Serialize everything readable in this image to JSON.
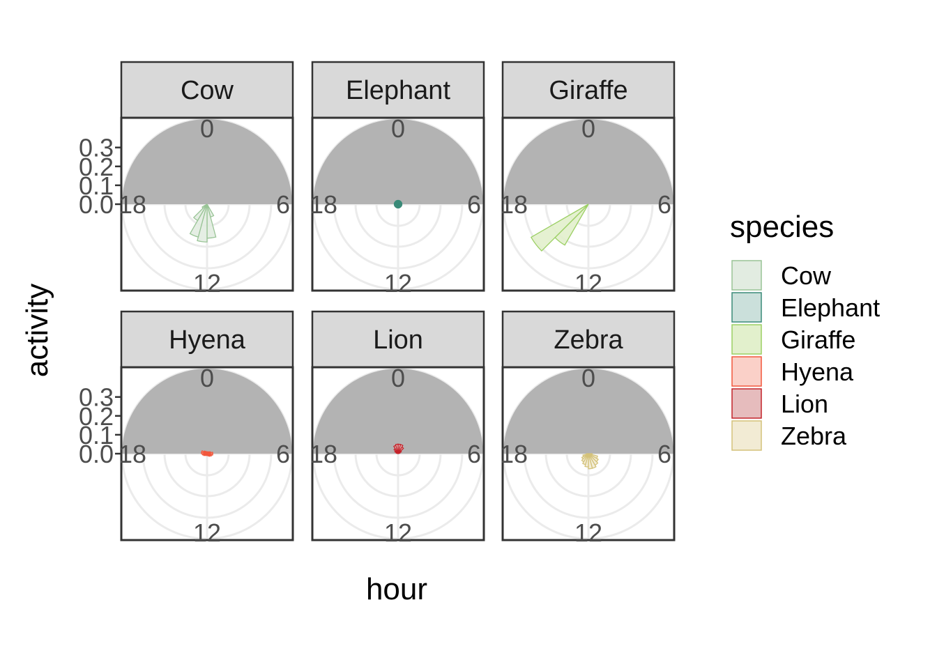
{
  "chart_data": {
    "type": "polar-bar",
    "facet_by": "species",
    "xlabel": "hour",
    "ylabel": "activity",
    "angle_ticks": [
      "0",
      "6",
      "12",
      "18"
    ],
    "radial_ticks": [
      "0.0",
      "0.1",
      "0.2",
      "0.3"
    ],
    "radial_lim": [
      0,
      0.45
    ],
    "night_band": {
      "from_hour": 18,
      "to_hour": 6,
      "color": "#b3b3b3"
    },
    "legend": {
      "title": "species",
      "position": "right"
    },
    "hours": [
      0,
      1,
      2,
      3,
      4,
      5,
      6,
      7,
      8,
      9,
      10,
      11,
      12,
      13,
      14,
      15,
      16,
      17,
      18,
      19,
      20,
      21,
      22,
      23
    ],
    "panels": [
      {
        "species": "Cow",
        "fill": "#e2ece1",
        "stroke": "#99c496",
        "values": [
          0,
          0,
          0,
          0,
          0,
          0,
          0,
          0,
          0,
          0,
          0.07,
          0.18,
          0.2,
          0.18,
          0.1,
          0.03,
          0,
          0,
          0,
          0,
          0,
          0,
          0,
          0
        ]
      },
      {
        "species": "Elephant",
        "fill": "#cbe0db",
        "stroke": "#3a8a78",
        "values": [
          0.02,
          0.02,
          0.02,
          0.02,
          0.02,
          0.02,
          0.02,
          0.02,
          0.02,
          0.02,
          0.02,
          0.02,
          0.02,
          0.02,
          0.02,
          0.02,
          0.02,
          0.02,
          0.02,
          0.02,
          0.02,
          0.02,
          0.02,
          0.02
        ]
      },
      {
        "species": "Giraffe",
        "fill": "#e2f0cc",
        "stroke": "#9bcf63",
        "values": [
          0,
          0,
          0,
          0,
          0,
          0,
          0,
          0,
          0,
          0,
          0,
          0,
          0,
          0,
          0.25,
          0.35,
          0,
          0,
          0,
          0,
          0,
          0,
          0,
          0
        ]
      },
      {
        "species": "Hyena",
        "fill": "#fad0c8",
        "stroke": "#f2573c",
        "values": [
          0.01,
          0.01,
          0.01,
          0.015,
          0.02,
          0.03,
          0.03,
          0.025,
          0.02,
          0.015,
          0.01,
          0.01,
          0.01,
          0.01,
          0.01,
          0.015,
          0.02,
          0.025,
          0.03,
          0.03,
          0.02,
          0.015,
          0.01,
          0.01
        ]
      },
      {
        "species": "Lion",
        "fill": "#e6bcbd",
        "stroke": "#c4232a",
        "values": [
          0.05,
          0.05,
          0.04,
          0.02,
          0.01,
          0,
          0,
          0,
          0,
          0,
          0,
          0,
          0,
          0,
          0,
          0,
          0,
          0,
          0,
          0.01,
          0.02,
          0.03,
          0.045,
          0.05
        ]
      },
      {
        "species": "Zebra",
        "fill": "#f2ebd4",
        "stroke": "#d4c27a",
        "values": [
          0,
          0,
          0,
          0,
          0,
          0,
          0.02,
          0.05,
          0.06,
          0.07,
          0.08,
          0.08,
          0.07,
          0.06,
          0.05,
          0.04,
          0.03,
          0.01,
          0,
          0,
          0,
          0,
          0,
          0
        ]
      }
    ]
  }
}
